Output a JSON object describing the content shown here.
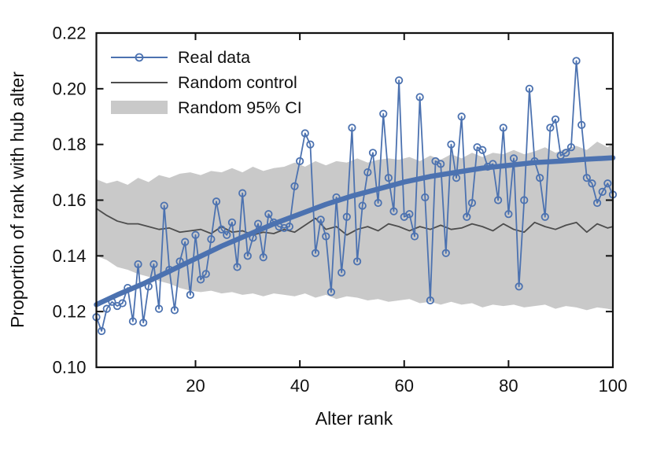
{
  "chart_data": {
    "type": "line",
    "title": "",
    "xlabel": "Alter rank",
    "ylabel": "Proportion of rank with hub alter",
    "xlim": [
      1,
      100
    ],
    "ylim": [
      0.1,
      0.22
    ],
    "grid": false,
    "legend_position": "upper-left",
    "xticks": [
      20,
      40,
      60,
      80,
      100
    ],
    "xtick_labels": [
      "20",
      "40",
      "60",
      "80",
      "100"
    ],
    "yticks": [
      0.1,
      0.12,
      0.14,
      0.16,
      0.18,
      0.2,
      0.22
    ],
    "ytick_labels": [
      "0.10",
      "0.12",
      "0.14",
      "0.16",
      "0.18",
      "0.20",
      "0.22"
    ],
    "colors": {
      "real_data": "#4C72B0",
      "trend": "#4C72B0",
      "random_control": "#4D4D4D",
      "ci_band": "#C9C9C9",
      "axes": "#111111"
    },
    "legend": [
      {
        "label": "Real data",
        "swatch": "line-marker",
        "color": "#4C72B0"
      },
      {
        "label": "Random control",
        "swatch": "line",
        "color": "#4D4D4D"
      },
      {
        "label": "Random 95% CI",
        "swatch": "patch",
        "color": "#C9C9C9"
      }
    ],
    "series": [
      {
        "name": "Real data",
        "style": "line+open-circle-markers",
        "x_start": 1,
        "x_step": 1,
        "values": [
          0.118,
          0.113,
          0.121,
          0.1235,
          0.122,
          0.123,
          0.1285,
          0.1165,
          0.137,
          0.116,
          0.129,
          0.137,
          0.121,
          0.158,
          0.135,
          0.1205,
          0.138,
          0.145,
          0.126,
          0.1475,
          0.1315,
          0.1335,
          0.146,
          0.1595,
          0.1495,
          0.1475,
          0.152,
          0.136,
          0.1625,
          0.14,
          0.1465,
          0.1515,
          0.1395,
          0.155,
          0.152,
          0.1505,
          0.15,
          0.1505,
          0.165,
          0.174,
          0.184,
          0.18,
          0.141,
          0.153,
          0.147,
          0.127,
          0.161,
          0.134,
          0.154,
          0.186,
          0.138,
          0.158,
          0.17,
          0.177,
          0.159,
          0.191,
          0.168,
          0.156,
          0.203,
          0.154,
          0.155,
          0.147,
          0.197,
          0.161,
          0.124,
          0.174,
          0.173,
          0.141,
          0.18,
          0.168,
          0.19,
          0.154,
          0.159,
          0.179,
          0.178,
          0.172,
          0.173,
          0.16,
          0.186,
          0.155,
          0.175,
          0.129,
          0.16,
          0.2,
          0.174,
          0.168,
          0.154,
          0.186,
          0.189,
          0.176,
          0.177,
          0.179,
          0.21,
          0.187,
          0.168,
          0.166,
          0.159,
          0.163,
          0.166,
          0.162
        ]
      },
      {
        "name": "Real data smoothed trend",
        "style": "thick-line",
        "x": [
          1,
          5,
          10,
          15,
          20,
          25,
          30,
          35,
          40,
          45,
          50,
          55,
          60,
          65,
          70,
          75,
          80,
          85,
          90,
          95,
          100
        ],
        "values": [
          0.1225,
          0.126,
          0.13,
          0.1345,
          0.139,
          0.1435,
          0.1475,
          0.1515,
          0.155,
          0.1585,
          0.1615,
          0.164,
          0.1665,
          0.1685,
          0.17,
          0.1715,
          0.1725,
          0.1735,
          0.174,
          0.1747,
          0.1752
        ]
      },
      {
        "name": "Random control",
        "style": "line",
        "x": [
          1,
          3,
          5,
          7,
          9,
          11,
          13,
          15,
          17,
          19,
          21,
          23,
          25,
          27,
          29,
          31,
          33,
          35,
          37,
          39,
          41,
          43,
          45,
          47,
          49,
          51,
          53,
          55,
          57,
          59,
          61,
          63,
          65,
          67,
          69,
          71,
          73,
          75,
          77,
          79,
          81,
          83,
          85,
          87,
          89,
          91,
          93,
          95,
          97,
          99,
          100
        ],
        "values": [
          0.157,
          0.1545,
          0.1525,
          0.1515,
          0.1515,
          0.1505,
          0.1495,
          0.15,
          0.1485,
          0.149,
          0.1495,
          0.148,
          0.1505,
          0.1485,
          0.149,
          0.1475,
          0.1485,
          0.148,
          0.1495,
          0.1485,
          0.151,
          0.1535,
          0.1495,
          0.1505,
          0.1475,
          0.1495,
          0.1505,
          0.149,
          0.1515,
          0.1505,
          0.149,
          0.1505,
          0.1495,
          0.151,
          0.1495,
          0.15,
          0.1515,
          0.1505,
          0.149,
          0.1515,
          0.1495,
          0.1485,
          0.152,
          0.1505,
          0.1495,
          0.151,
          0.152,
          0.1485,
          0.1515,
          0.15,
          0.1505
        ]
      },
      {
        "name": "Random 95% CI",
        "style": "band",
        "x": [
          1,
          3,
          5,
          7,
          9,
          11,
          13,
          15,
          17,
          19,
          21,
          23,
          25,
          27,
          29,
          31,
          33,
          35,
          37,
          39,
          41,
          43,
          45,
          47,
          49,
          51,
          53,
          55,
          57,
          59,
          61,
          63,
          65,
          67,
          69,
          71,
          73,
          75,
          77,
          79,
          81,
          83,
          85,
          87,
          89,
          91,
          93,
          95,
          97,
          99,
          100
        ],
        "upper": [
          0.1675,
          0.166,
          0.167,
          0.1655,
          0.168,
          0.1665,
          0.169,
          0.168,
          0.1695,
          0.17,
          0.169,
          0.1705,
          0.17,
          0.1715,
          0.17,
          0.172,
          0.1705,
          0.1715,
          0.172,
          0.1735,
          0.172,
          0.174,
          0.1725,
          0.174,
          0.1735,
          0.175,
          0.1735,
          0.1745,
          0.175,
          0.1745,
          0.1755,
          0.174,
          0.176,
          0.1745,
          0.1765,
          0.175,
          0.177,
          0.1755,
          0.177,
          0.1765,
          0.178,
          0.1765,
          0.1775,
          0.179,
          0.177,
          0.1785,
          0.1795,
          0.178,
          0.181,
          0.179,
          0.1805
        ],
        "lower": [
          0.14,
          0.1385,
          0.136,
          0.135,
          0.1335,
          0.1325,
          0.131,
          0.13,
          0.1285,
          0.1275,
          0.127,
          0.1275,
          0.1265,
          0.127,
          0.126,
          0.1265,
          0.1255,
          0.1265,
          0.126,
          0.1255,
          0.1265,
          0.125,
          0.126,
          0.1245,
          0.1255,
          0.125,
          0.124,
          0.1245,
          0.1235,
          0.124,
          0.1245,
          0.123,
          0.1235,
          0.1225,
          0.1235,
          0.1225,
          0.123,
          0.1215,
          0.1225,
          0.122,
          0.1225,
          0.1215,
          0.122,
          0.1225,
          0.121,
          0.122,
          0.1215,
          0.1205,
          0.1215,
          0.121,
          0.1205
        ]
      }
    ]
  }
}
